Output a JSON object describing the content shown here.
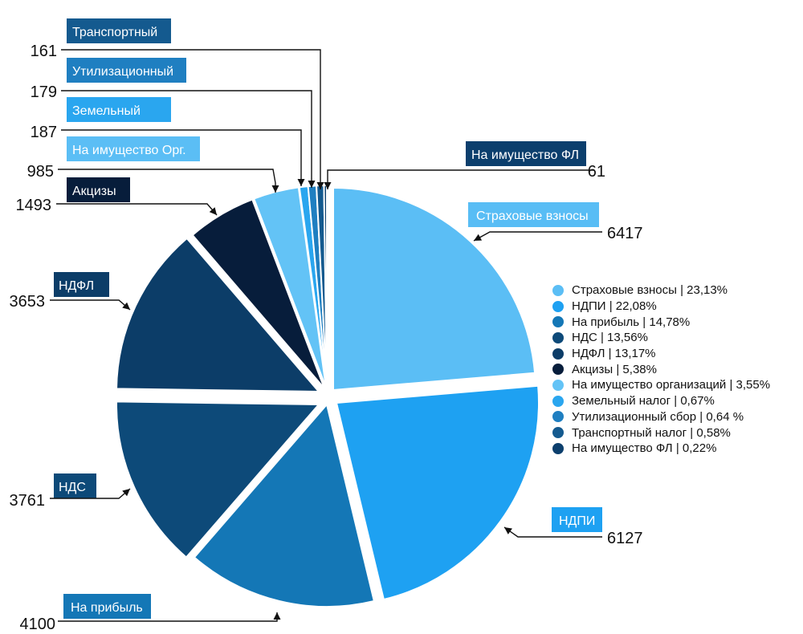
{
  "chart_data": {
    "type": "pie",
    "slices": [
      {
        "label": "Страховые взносы",
        "value": 6417,
        "color": "#5bbef5"
      },
      {
        "label": "НДПИ",
        "value": 6127,
        "color": "#1ea1f2"
      },
      {
        "label": "На прибыль",
        "value": 4100,
        "color": "#1477b6"
      },
      {
        "label": "НДС",
        "value": 3761,
        "color": "#0d4a79"
      },
      {
        "label": "НДФЛ",
        "value": 3653,
        "color": "#0c3d68"
      },
      {
        "label": "Акцизы",
        "value": 1493,
        "color": "#071d3b"
      },
      {
        "label": "На имущество Орг.",
        "value": 985,
        "color": "#63c3f6"
      },
      {
        "label": "Земельный",
        "value": 187,
        "color": "#2aa6ef"
      },
      {
        "label": "Утилизационный",
        "value": 179,
        "color": "#1f7fc1"
      },
      {
        "label": "Транспортный",
        "value": 161,
        "color": "#145a8f"
      },
      {
        "label": "На имущество ФЛ",
        "value": 61,
        "color": "#0c3f6d"
      }
    ],
    "legend": [
      {
        "text": "Страховые взносы | 23,13%",
        "color": "#5bbef5"
      },
      {
        "text": "НДПИ | 22,08%",
        "color": "#1ea1f2"
      },
      {
        "text": " На прибыль | 14,78%",
        "color": "#1477b6"
      },
      {
        "text": "НДС | 13,56%",
        "color": "#0d4a79"
      },
      {
        "text": " НДФЛ | 13,17%",
        "color": "#0c3d68"
      },
      {
        "text": "Акцизы | 5,38%",
        "color": "#071d3b"
      },
      {
        "text": "На имущество организаций | 3,55%",
        "color": "#63c3f6"
      },
      {
        "text": "Земельный налог | 0,67%",
        "color": "#2aa6ef"
      },
      {
        "text": "Утилизационный сбор | 0,64 %",
        "color": "#1f7fc1"
      },
      {
        "text": "Транспортный налог | 0,58%",
        "color": "#145a8f"
      },
      {
        "text": "На имущество ФЛ | 0,22%",
        "color": "#0c3f6d"
      }
    ],
    "legend_placement": "right"
  }
}
